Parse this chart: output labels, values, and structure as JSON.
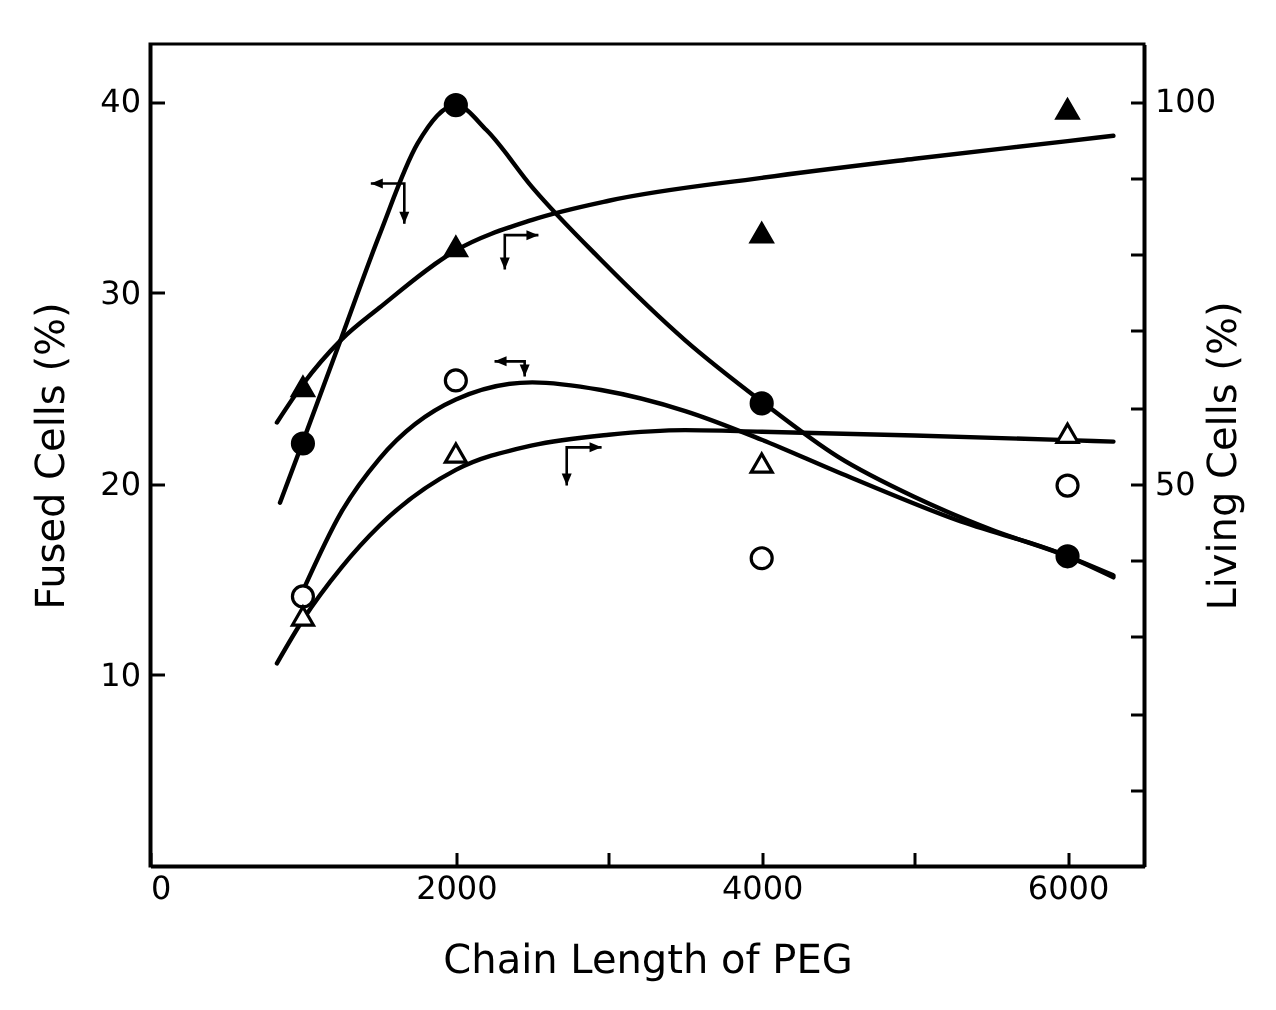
{
  "chart_data": {
    "type": "scatter",
    "xlabel": "Chain Length of PEG",
    "ylabel": "Fused Cells (%)",
    "y2label": "Living Cells (%)",
    "xlim": [
      0,
      6500
    ],
    "xticks": [
      0,
      2000,
      {
        "value": 3000,
        "label": null
      },
      4000,
      {
        "value": 5000,
        "label": null
      },
      6000
    ],
    "ylim": [
      0,
      43
    ],
    "yticks": [
      10,
      20,
      30,
      40
    ],
    "y2lim": [
      0,
      107.5
    ],
    "y2ticks": [
      {
        "value": 10,
        "label": null
      },
      {
        "value": 20,
        "label": null
      },
      {
        "value": 30,
        "label": null
      },
      {
        "value": 40,
        "label": null
      },
      50,
      {
        "value": 60,
        "label": null
      },
      {
        "value": 70,
        "label": null
      },
      {
        "value": 80,
        "label": null
      },
      {
        "value": 90,
        "label": null
      },
      100
    ],
    "series": [
      {
        "type": "line",
        "color": "#000000",
        "x": [
          850,
          1000,
          1250,
          1500,
          1750,
          2000,
          2200,
          2500,
          2950,
          3500,
          4000,
          4500,
          5000,
          5500,
          6000,
          6300
        ],
        "values": [
          19.0,
          22.2,
          27.6,
          33.0,
          37.8,
          39.8,
          38.5,
          35.5,
          31.7,
          27.5,
          24.3,
          21.4,
          19.3,
          17.6,
          16.2,
          15.2
        ]
      },
      {
        "type": "line",
        "color": "#000000",
        "x": [
          1000,
          1250,
          1500,
          2000,
          2500,
          2950,
          3500,
          4000,
          4500,
          5275,
          6000,
          6300
        ],
        "values": [
          14.4,
          18.5,
          21.3,
          24.4,
          25.3,
          24.9,
          23.8,
          22.3,
          20.6,
          18.1,
          16.2,
          15.1
        ]
      },
      {
        "type": "line",
        "axis": "y2",
        "color": "#000000",
        "x": [
          830,
          1000,
          1250,
          1500,
          2000,
          2500,
          3000,
          4000,
          5000,
          6000,
          6300
        ],
        "values": [
          58,
          63,
          68.8,
          73,
          80.5,
          84.5,
          87,
          90,
          92.5,
          94.8,
          95.5
        ]
      },
      {
        "type": "line",
        "axis": "y2",
        "color": "#000000",
        "x": [
          830,
          1000,
          1250,
          1500,
          2000,
          2500,
          3000,
          3500,
          4000,
          5000,
          6000,
          6300
        ],
        "values": [
          26.5,
          32.2,
          39,
          44.5,
          51.8,
          55,
          56.4,
          57,
          56.8,
          56.3,
          55.7,
          55.5
        ]
      },
      {
        "marker": "circle",
        "color": "#000000",
        "x": [
          1000,
          2000,
          4000,
          6000
        ],
        "values": [
          22.1,
          39.8,
          24.2,
          16.2
        ]
      },
      {
        "marker": "circle",
        "color": "#ffffff",
        "x": [
          1000,
          2000,
          4000,
          6000
        ],
        "values": [
          14.1,
          25.4,
          16.1,
          19.9
        ]
      },
      {
        "axis": "y2",
        "marker": "triangle",
        "color": "#000000",
        "x": [
          1000,
          2000,
          4000,
          6000
        ],
        "values": [
          62.7,
          81,
          82.8,
          99
        ]
      },
      {
        "axis": "y2",
        "marker": "triangle",
        "color": "#ffffff",
        "x": [
          1000,
          2000,
          4000,
          6000
        ],
        "values": [
          32.7,
          54,
          52.7,
          56.6
        ]
      }
    ]
  }
}
